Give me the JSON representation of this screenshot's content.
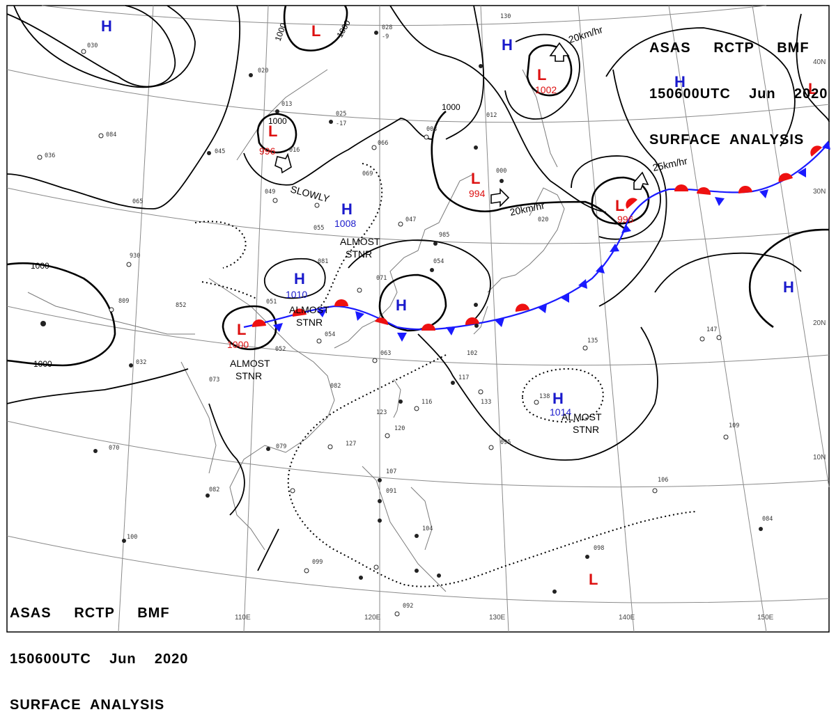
{
  "header": {
    "line1": "ASAS     RCTP     BMF",
    "line2": "150600UTC    Jun    2020",
    "line3": "SURFACE  ANALYSIS"
  },
  "colors": {
    "high": "#1a1acc",
    "low": "#dd1111",
    "warm_front": "#ee1111",
    "cold_front": "#1a1aff",
    "isobar": "#000000",
    "grid": "#8a8a8a"
  },
  "axis_labels": {
    "lon_110": "110E",
    "lon_120": "120E",
    "lon_130": "130E",
    "lon_140": "140E",
    "lon_150": "150E",
    "lat_10": "10N",
    "lat_20": "20N",
    "lat_30": "30N",
    "lat_40": "40N"
  },
  "pressure_systems": {
    "h_nw": {
      "type": "H",
      "value": ""
    },
    "l_north": {
      "type": "L",
      "value": ""
    },
    "l_mongolia": {
      "type": "L",
      "value": "996"
    },
    "h_central": {
      "type": "H",
      "value": "1008"
    },
    "h_south_china": {
      "type": "H",
      "value": "1010"
    },
    "l_west": {
      "type": "L",
      "value": "1000"
    },
    "h_east_china_sea": {
      "type": "H",
      "value": ""
    },
    "l_manchuria": {
      "type": "L",
      "value": "994"
    },
    "h_northeast": {
      "type": "H",
      "value": ""
    },
    "l_okhotsk": {
      "type": "L",
      "value": "1002"
    },
    "h_northeast_far": {
      "type": "H",
      "value": ""
    },
    "l_northeast_corner": {
      "type": "L",
      "value": ""
    },
    "l_japan_sea": {
      "type": "L",
      "value": "996"
    },
    "h_east_pacific": {
      "type": "H",
      "value": ""
    },
    "h_philippine_sea": {
      "type": "H",
      "value": "1014"
    },
    "l_southeast": {
      "type": "L",
      "value": ""
    }
  },
  "isobar_labels": {
    "iso_1000_a": "1000",
    "iso_1000_b": "1000",
    "iso_1000_c": "1000",
    "iso_1000_d": "1000",
    "iso_1000_e": "1000",
    "iso_1000_f": "1000"
  },
  "annotations": {
    "slowly": "SLOWLY",
    "almost_stnr_central": "ALMOST",
    "almost_stnr_central_2": "STNR",
    "almost_stnr_south": "ALMOST",
    "almost_stnr_south_2": "STNR",
    "almost_stnr_west": "ALMOST",
    "almost_stnr_west_2": "STNR",
    "almost_stnr_east": "ALMOST",
    "almost_stnr_east_2": "STNR",
    "motion_okhotsk": "20km/hr",
    "motion_japan": "25km/hr",
    "motion_manchuria": "20km/hr"
  },
  "station_samples": [
    "028",
    "-9",
    "020",
    "013",
    "025",
    "-17",
    "084",
    "036",
    "065",
    "045",
    "016",
    "049",
    "081",
    "055",
    "071",
    "066",
    "003",
    "012",
    "000",
    "047",
    "985",
    "054",
    "069",
    "930",
    "809",
    "852",
    "051",
    "052",
    "054",
    "063",
    "102",
    "082",
    "116",
    "123",
    "120",
    "127",
    "107",
    "091",
    "104",
    "099",
    "092",
    "117",
    "133",
    "095",
    "138",
    "135",
    "147",
    "109",
    "106",
    "084",
    "098",
    "079",
    "070",
    "100",
    "032",
    "073",
    "082",
    "130",
    "030",
    "020"
  ]
}
